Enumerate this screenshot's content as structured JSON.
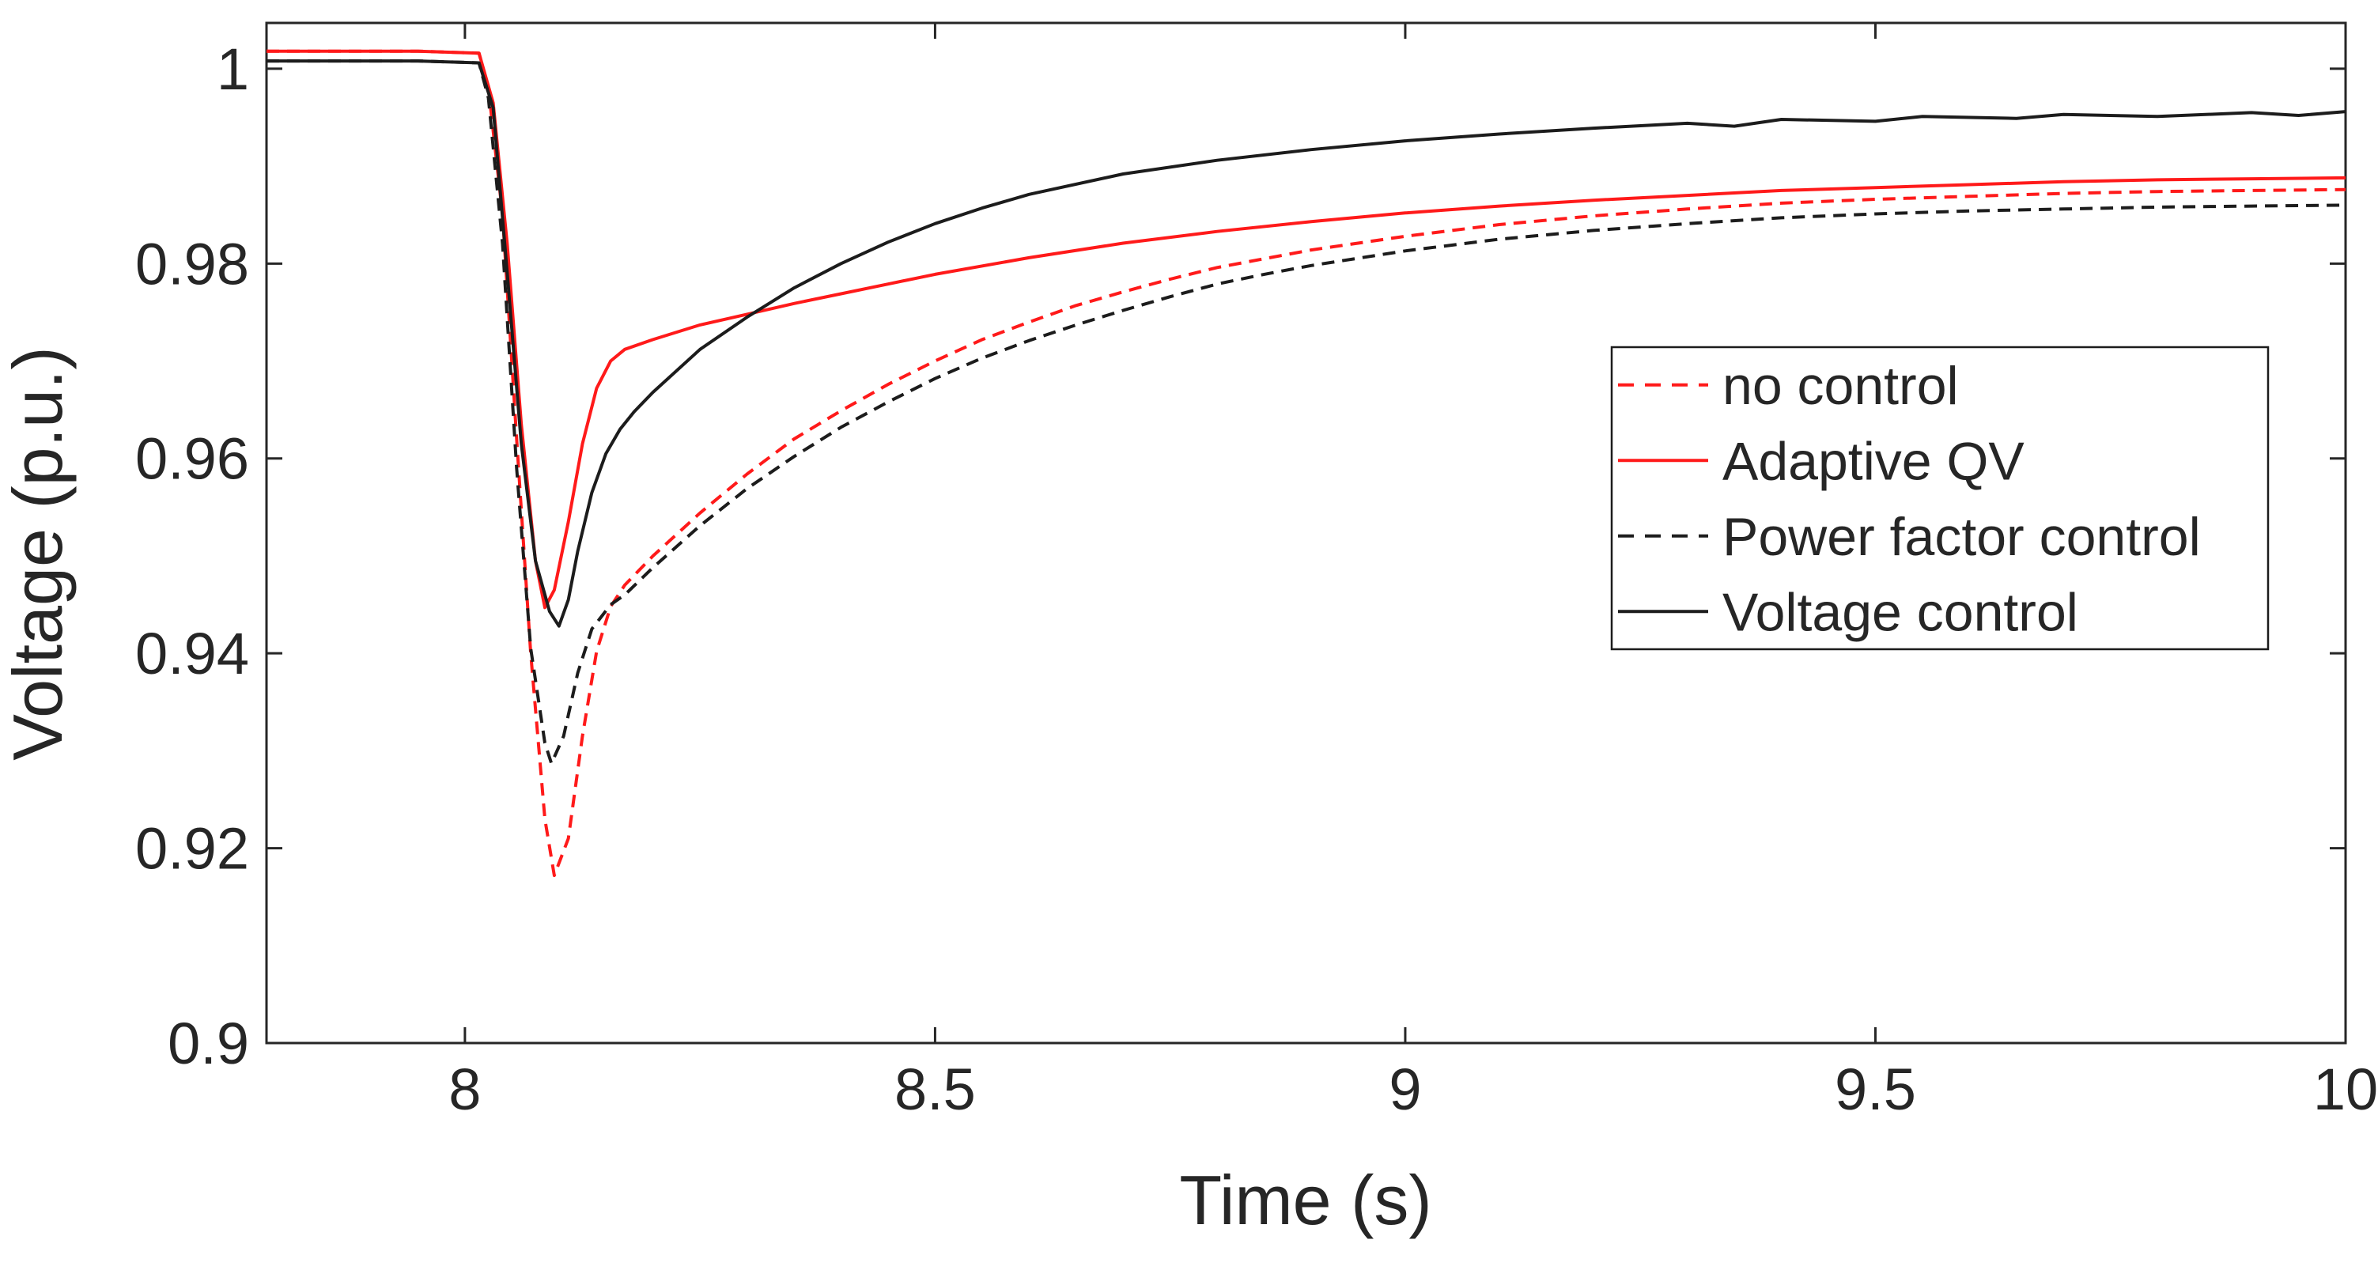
{
  "figure": {
    "background": "#ffffff"
  },
  "chart_data": {
    "type": "line",
    "title": "",
    "xlabel": "Time (s)",
    "ylabel": "Voltage (p.u.)",
    "xlim": [
      7.789,
      10
    ],
    "ylim": [
      0.9,
      1.0047
    ],
    "xticks": [
      8,
      8.5,
      9,
      9.5,
      10
    ],
    "xtick_labels": [
      "8",
      "8.5",
      "9",
      "9.5",
      "10"
    ],
    "yticks": [
      0.9,
      0.92,
      0.94,
      0.96,
      0.98,
      1
    ],
    "ytick_labels": [
      "0.9",
      "0.92",
      "0.94",
      "0.96",
      "0.98",
      "1"
    ],
    "grid": false,
    "legend_position": "middle-right",
    "axis_color": "#262626",
    "colors": {
      "red": "#ff1a1a",
      "black": "#1c1c1c"
    },
    "series": [
      {
        "name": "no control",
        "color": "#ff1a1a",
        "style": "dashed",
        "points": [
          [
            7.789,
            1.0018
          ],
          [
            7.95,
            1.0018
          ],
          [
            8.015,
            1.0016
          ],
          [
            8.025,
            0.998
          ],
          [
            8.04,
            0.985
          ],
          [
            8.055,
            0.962
          ],
          [
            8.07,
            0.94
          ],
          [
            8.085,
            0.923
          ],
          [
            8.095,
            0.9172
          ],
          [
            8.11,
            0.921
          ],
          [
            8.125,
            0.9315
          ],
          [
            8.14,
            0.9402
          ],
          [
            8.155,
            0.9448
          ],
          [
            8.17,
            0.947
          ],
          [
            8.2,
            0.95
          ],
          [
            8.25,
            0.9544
          ],
          [
            8.3,
            0.9584
          ],
          [
            8.35,
            0.962
          ],
          [
            8.4,
            0.9649
          ],
          [
            8.45,
            0.9676
          ],
          [
            8.5,
            0.97
          ],
          [
            8.55,
            0.9722
          ],
          [
            8.6,
            0.974
          ],
          [
            8.65,
            0.9757
          ],
          [
            8.7,
            0.9771
          ],
          [
            8.75,
            0.9784
          ],
          [
            8.8,
            0.9796
          ],
          [
            8.85,
            0.9805
          ],
          [
            8.9,
            0.9814
          ],
          [
            9.0,
            0.9828
          ],
          [
            9.1,
            0.984
          ],
          [
            9.2,
            0.9849
          ],
          [
            9.3,
            0.9856
          ],
          [
            9.4,
            0.9862
          ],
          [
            9.5,
            0.9866
          ],
          [
            9.6,
            0.9869
          ],
          [
            9.7,
            0.9872
          ],
          [
            9.8,
            0.9874
          ],
          [
            9.9,
            0.9875
          ],
          [
            10,
            0.9876
          ]
        ]
      },
      {
        "name": "Adaptive QV",
        "color": "#ff1a1a",
        "style": "solid",
        "points": [
          [
            7.789,
            1.0018
          ],
          [
            7.95,
            1.0018
          ],
          [
            8.015,
            1.0016
          ],
          [
            8.03,
            0.9965
          ],
          [
            8.045,
            0.982
          ],
          [
            8.06,
            0.9635
          ],
          [
            8.075,
            0.9495
          ],
          [
            8.085,
            0.9447
          ],
          [
            8.095,
            0.9465
          ],
          [
            8.11,
            0.9535
          ],
          [
            8.125,
            0.9615
          ],
          [
            8.14,
            0.9672
          ],
          [
            8.155,
            0.97
          ],
          [
            8.17,
            0.9712
          ],
          [
            8.2,
            0.9722
          ],
          [
            8.25,
            0.9737
          ],
          [
            8.3,
            0.9748
          ],
          [
            8.35,
            0.9759
          ],
          [
            8.4,
            0.9769
          ],
          [
            8.45,
            0.9779
          ],
          [
            8.5,
            0.9789
          ],
          [
            8.6,
            0.9806
          ],
          [
            8.7,
            0.9821
          ],
          [
            8.8,
            0.9833
          ],
          [
            8.9,
            0.9843
          ],
          [
            9.0,
            0.9852
          ],
          [
            9.1,
            0.9859
          ],
          [
            9.2,
            0.9865
          ],
          [
            9.3,
            0.987
          ],
          [
            9.4,
            0.9875
          ],
          [
            9.5,
            0.9878
          ],
          [
            9.6,
            0.9881
          ],
          [
            9.7,
            0.9884
          ],
          [
            9.8,
            0.9886
          ],
          [
            9.9,
            0.9887
          ],
          [
            10,
            0.9888
          ]
        ]
      },
      {
        "name": "Power factor control",
        "color": "#1c1c1c",
        "style": "dashed",
        "points": [
          [
            7.789,
            1.0008
          ],
          [
            7.95,
            1.0008
          ],
          [
            8.015,
            1.0006
          ],
          [
            8.025,
            0.997
          ],
          [
            8.04,
            0.982
          ],
          [
            8.055,
            0.959
          ],
          [
            8.07,
            0.9405
          ],
          [
            8.085,
            0.9308
          ],
          [
            8.092,
            0.9287
          ],
          [
            8.105,
            0.9315
          ],
          [
            8.12,
            0.938
          ],
          [
            8.135,
            0.9425
          ],
          [
            8.155,
            0.945
          ],
          [
            8.17,
            0.946
          ],
          [
            8.2,
            0.9488
          ],
          [
            8.25,
            0.9531
          ],
          [
            8.3,
            0.9569
          ],
          [
            8.35,
            0.9602
          ],
          [
            8.4,
            0.9632
          ],
          [
            8.45,
            0.9658
          ],
          [
            8.5,
            0.9682
          ],
          [
            8.55,
            0.9703
          ],
          [
            8.6,
            0.9721
          ],
          [
            8.65,
            0.9737
          ],
          [
            8.7,
            0.9752
          ],
          [
            8.75,
            0.9766
          ],
          [
            8.8,
            0.9779
          ],
          [
            8.85,
            0.9789
          ],
          [
            8.9,
            0.9798
          ],
          [
            9.0,
            0.9813
          ],
          [
            9.1,
            0.9825
          ],
          [
            9.2,
            0.9834
          ],
          [
            9.3,
            0.9841
          ],
          [
            9.4,
            0.9847
          ],
          [
            9.5,
            0.9851
          ],
          [
            9.6,
            0.9854
          ],
          [
            9.7,
            0.9856
          ],
          [
            9.8,
            0.9858
          ],
          [
            9.9,
            0.9859
          ],
          [
            10,
            0.986
          ]
        ]
      },
      {
        "name": "Voltage control",
        "color": "#1c1c1c",
        "style": "solid",
        "points": [
          [
            7.789,
            1.0008
          ],
          [
            7.95,
            1.0008
          ],
          [
            8.015,
            1.0006
          ],
          [
            8.03,
            0.996
          ],
          [
            8.045,
            0.979
          ],
          [
            8.06,
            0.9615
          ],
          [
            8.075,
            0.9495
          ],
          [
            8.09,
            0.9443
          ],
          [
            8.1,
            0.9428
          ],
          [
            8.11,
            0.9455
          ],
          [
            8.12,
            0.9505
          ],
          [
            8.135,
            0.9565
          ],
          [
            8.15,
            0.9605
          ],
          [
            8.165,
            0.963
          ],
          [
            8.18,
            0.9648
          ],
          [
            8.2,
            0.9668
          ],
          [
            8.25,
            0.9712
          ],
          [
            8.3,
            0.9745
          ],
          [
            8.35,
            0.9775
          ],
          [
            8.4,
            0.98
          ],
          [
            8.45,
            0.9822
          ],
          [
            8.5,
            0.9841
          ],
          [
            8.55,
            0.9857
          ],
          [
            8.6,
            0.9871
          ],
          [
            8.7,
            0.9892
          ],
          [
            8.8,
            0.9906
          ],
          [
            8.9,
            0.9917
          ],
          [
            9.0,
            0.9926
          ],
          [
            9.1,
            0.9933
          ],
          [
            9.2,
            0.9939
          ],
          [
            9.3,
            0.9944
          ],
          [
            9.35,
            0.9941
          ],
          [
            9.4,
            0.9948
          ],
          [
            9.5,
            0.9946
          ],
          [
            9.55,
            0.9951
          ],
          [
            9.65,
            0.9949
          ],
          [
            9.7,
            0.9953
          ],
          [
            9.8,
            0.9951
          ],
          [
            9.9,
            0.9955
          ],
          [
            9.95,
            0.9952
          ],
          [
            10,
            0.9956
          ]
        ]
      }
    ]
  }
}
